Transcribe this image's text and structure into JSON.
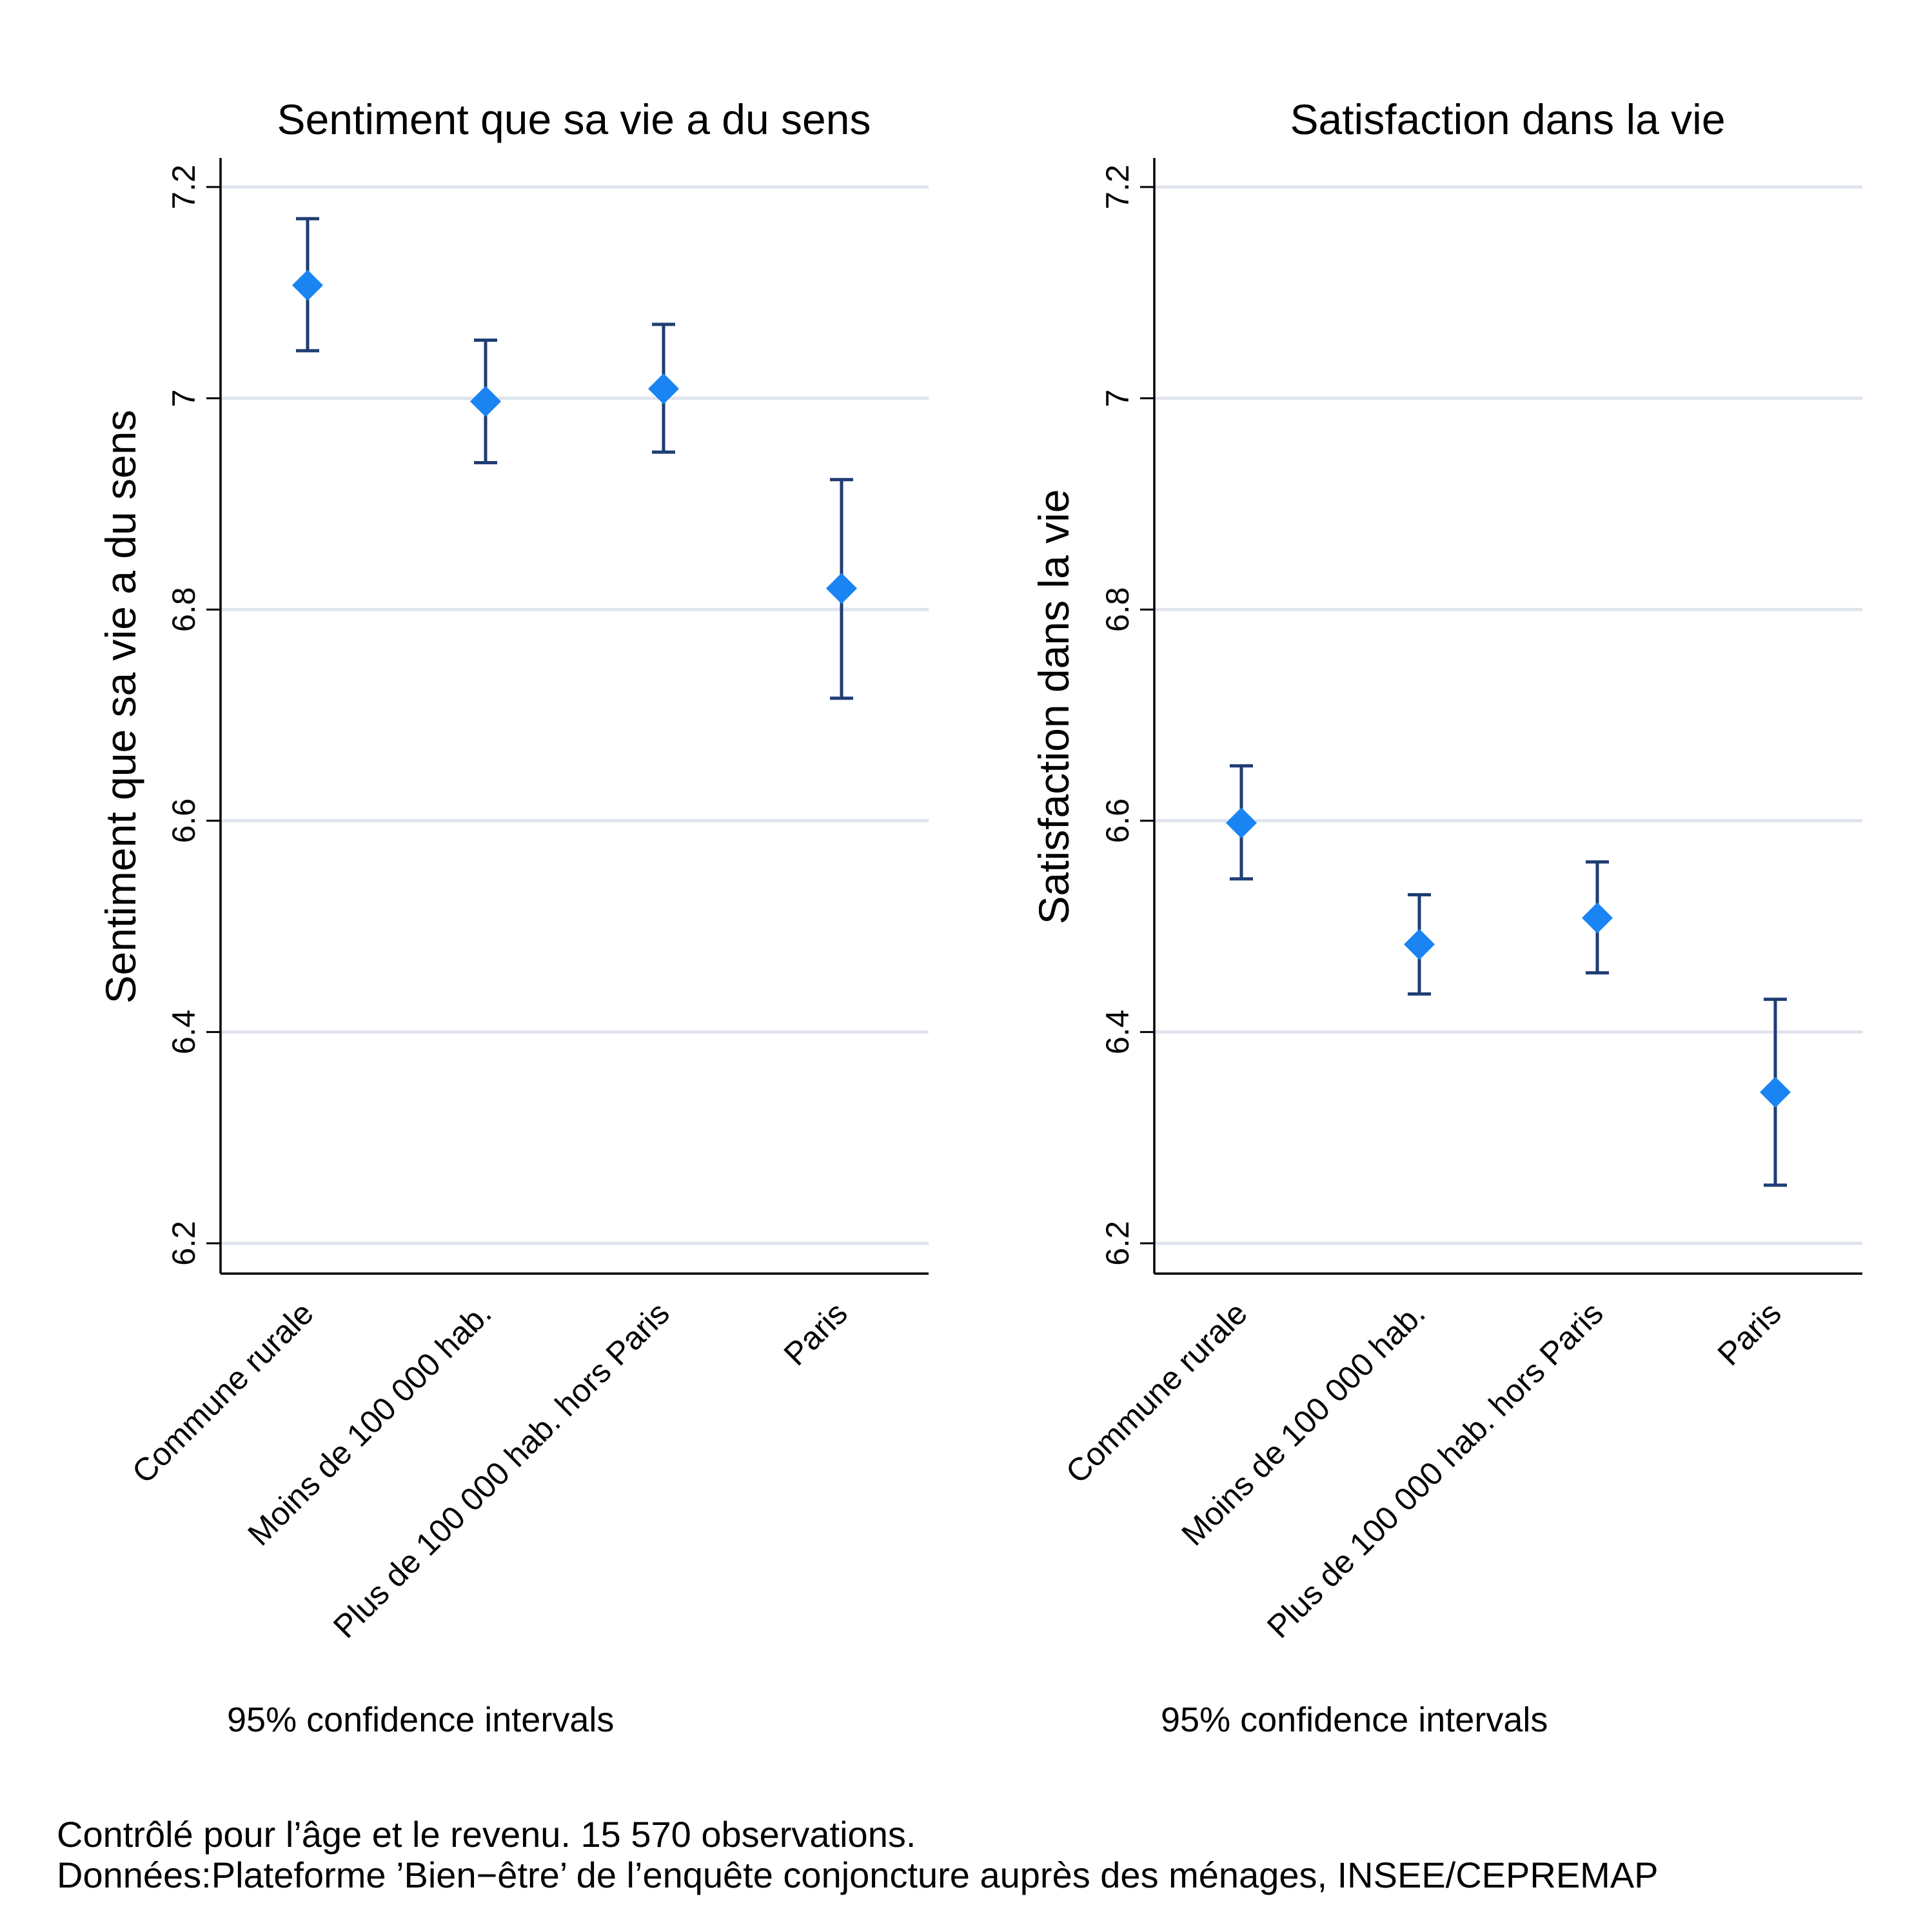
{
  "chart_data": [
    {
      "type": "scatter",
      "title": "Sentiment que sa vie a du sens",
      "ylabel": "Sentiment que sa vie a du sens",
      "xlabel": "",
      "categories": [
        "Commune rurale",
        "Moins de 100 000 hab.",
        "Plus de 100 000 hab. hors Paris",
        "Paris"
      ],
      "values": [
        7.107,
        6.997,
        7.009,
        6.82
      ],
      "ci_low": [
        7.045,
        6.939,
        6.949,
        6.716
      ],
      "ci_high": [
        7.17,
        7.055,
        7.07,
        6.923
      ],
      "ylim": [
        6.2,
        7.2
      ],
      "yticks": [
        6.2,
        6.4,
        6.6,
        6.8,
        7.0,
        7.2
      ],
      "ytick_labels": [
        "6.2",
        "6.4",
        "6.6",
        "6.8",
        "7",
        "7.2"
      ],
      "grid": true,
      "note": "95% confidence intervals"
    },
    {
      "type": "scatter",
      "title": "Satisfaction dans la vie",
      "ylabel": "Satisfaction dans la vie",
      "xlabel": "",
      "categories": [
        "Commune rurale",
        "Moins de 100 000 hab.",
        "Plus de 100 000 hab. hors Paris",
        "Paris"
      ],
      "values": [
        6.598,
        6.483,
        6.508,
        6.343
      ],
      "ci_low": [
        6.545,
        6.436,
        6.456,
        6.255
      ],
      "ci_high": [
        6.652,
        6.53,
        6.561,
        6.431
      ],
      "ylim": [
        6.2,
        7.2
      ],
      "yticks": [
        6.2,
        6.4,
        6.6,
        6.8,
        7.0,
        7.2
      ],
      "ytick_labels": [
        "6.2",
        "6.4",
        "6.6",
        "6.8",
        "7",
        "7.2"
      ],
      "grid": true,
      "note": "95% confidence intervals"
    }
  ],
  "footnotes": {
    "line1": "Contrôlé pour l’âge et le revenu. 15 570 observations.",
    "line2": "Données:Plateforme ’Bien−être’ de l’enquête conjoncture auprès des ménages, INSEE/CEPREMAP"
  },
  "colors": {
    "marker": "#1a84f2",
    "errorbar": "#1f3d73",
    "grid": "#dfe4ee",
    "axis": "#000000"
  }
}
